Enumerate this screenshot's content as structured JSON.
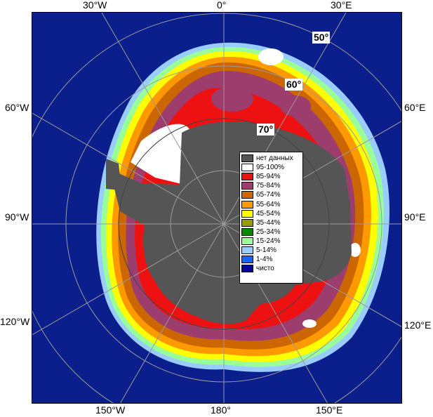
{
  "map": {
    "longitude_labels": {
      "w30": "30°W",
      "zero": "0°",
      "e30": "30°E",
      "w60": "60°W",
      "e60": "60°E",
      "w90": "90°W",
      "e90": "90°E",
      "w120": "120°W",
      "e120": "120°E",
      "w150": "150°W",
      "e180": "180°",
      "e150": "150°E"
    },
    "latitude_labels": {
      "lat50": "50°",
      "lat60": "60°",
      "lat70": "70°"
    }
  },
  "legend": {
    "items": [
      {
        "label": "нет данных",
        "color": "#555555"
      },
      {
        "label": "95-100%",
        "color": "#ffffff"
      },
      {
        "label": "85-94%",
        "color": "#ee1111"
      },
      {
        "label": "75-84%",
        "color": "#9c3d6e"
      },
      {
        "label": "65-74%",
        "color": "#cc6600"
      },
      {
        "label": "55-64%",
        "color": "#ff9900"
      },
      {
        "label": "45-54%",
        "color": "#ffff00"
      },
      {
        "label": "35-44%",
        "color": "#999900"
      },
      {
        "label": "25-34%",
        "color": "#008800"
      },
      {
        "label": "15-24%",
        "color": "#99ff99"
      },
      {
        "label": "5-14%",
        "color": "#99ccff"
      },
      {
        "label": "1-4%",
        "color": "#1166ff"
      },
      {
        "label": "чисто",
        "color": "#000a8c"
      }
    ]
  }
}
